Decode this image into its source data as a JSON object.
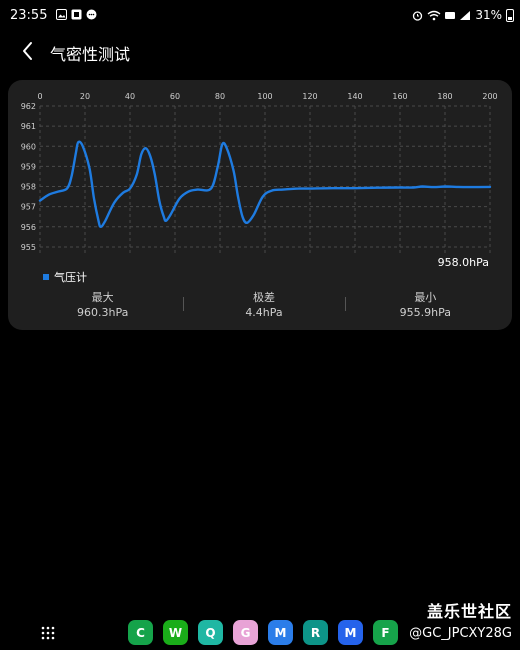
{
  "status_bar": {
    "time": "23:55",
    "battery": "31%",
    "left_icons": [
      "image-icon",
      "notification-icon",
      "chat-bubble-icon"
    ],
    "right_icons": [
      "alarm-icon",
      "wifi-icon",
      "hd-icon",
      "signal-icon"
    ]
  },
  "header": {
    "title": "气密性测试",
    "back_icon": "chevron-left-icon"
  },
  "chart_data": {
    "type": "line",
    "x_ticks": [
      0,
      20,
      40,
      60,
      80,
      100,
      120,
      140,
      160,
      180,
      200
    ],
    "y_ticks": [
      955,
      956,
      957,
      958,
      959,
      960,
      961,
      962
    ],
    "xlim": [
      0,
      200
    ],
    "ylim": [
      954.6,
      962
    ],
    "grid": true,
    "legend_position": "bottom-left",
    "current_value_label": "958.0hPa",
    "series": [
      {
        "name": "气压计",
        "color": "#1e7be0",
        "points": [
          [
            0,
            957.3
          ],
          [
            4,
            957.6
          ],
          [
            8,
            957.75
          ],
          [
            12,
            957.9
          ],
          [
            14,
            958.5
          ],
          [
            16,
            959.7
          ],
          [
            17,
            960.2
          ],
          [
            19,
            960.0
          ],
          [
            22,
            958.9
          ],
          [
            24,
            957.4
          ],
          [
            26,
            956.3
          ],
          [
            27,
            956.0
          ],
          [
            29,
            956.3
          ],
          [
            33,
            957.2
          ],
          [
            37,
            957.7
          ],
          [
            40,
            957.9
          ],
          [
            43,
            958.6
          ],
          [
            45,
            959.6
          ],
          [
            47,
            959.9
          ],
          [
            49,
            959.5
          ],
          [
            51,
            958.6
          ],
          [
            53,
            957.3
          ],
          [
            55,
            956.5
          ],
          [
            56,
            956.3
          ],
          [
            58,
            956.6
          ],
          [
            62,
            957.4
          ],
          [
            66,
            957.75
          ],
          [
            70,
            957.85
          ],
          [
            76,
            957.9
          ],
          [
            79,
            959.0
          ],
          [
            81,
            960.1
          ],
          [
            83,
            959.9
          ],
          [
            86,
            958.8
          ],
          [
            88,
            957.5
          ],
          [
            90,
            956.5
          ],
          [
            92,
            956.2
          ],
          [
            95,
            956.6
          ],
          [
            99,
            957.5
          ],
          [
            103,
            957.8
          ],
          [
            108,
            957.85
          ],
          [
            115,
            957.9
          ],
          [
            120,
            957.9
          ],
          [
            130,
            957.92
          ],
          [
            140,
            957.92
          ],
          [
            150,
            957.94
          ],
          [
            160,
            957.95
          ],
          [
            166,
            957.95
          ],
          [
            170,
            958.0
          ],
          [
            175,
            957.97
          ],
          [
            180,
            958.0
          ],
          [
            185,
            957.98
          ],
          [
            190,
            957.97
          ],
          [
            200,
            957.98
          ]
        ]
      }
    ],
    "stats": [
      {
        "label": "最大",
        "value": "960.3hPa"
      },
      {
        "label": "极差",
        "value": "4.4hPa"
      },
      {
        "label": "最小",
        "value": "955.9hPa"
      }
    ]
  },
  "taskbar": {
    "apps": [
      {
        "name": "phone-app-icon",
        "glyph": "C",
        "color": "#15a34a"
      },
      {
        "name": "wechat-app-icon",
        "glyph": "W",
        "color": "#1aad19"
      },
      {
        "name": "assistant-app-icon",
        "glyph": "Q",
        "color": "#1fb7a3"
      },
      {
        "name": "game-app-icon",
        "glyph": "G",
        "color": "#e8a3d6"
      },
      {
        "name": "messages-app-icon",
        "glyph": "M",
        "color": "#2b7de9"
      },
      {
        "name": "rocket-app-icon",
        "glyph": "R",
        "color": "#0d9488"
      },
      {
        "name": "meitu-app-icon",
        "glyph": "M",
        "color": "#2563eb"
      },
      {
        "name": "files-app-icon",
        "glyph": "F",
        "color": "#16a34a"
      }
    ]
  },
  "watermark": {
    "title": "盖乐世社区",
    "user": "@GC_JPCXY28G"
  }
}
